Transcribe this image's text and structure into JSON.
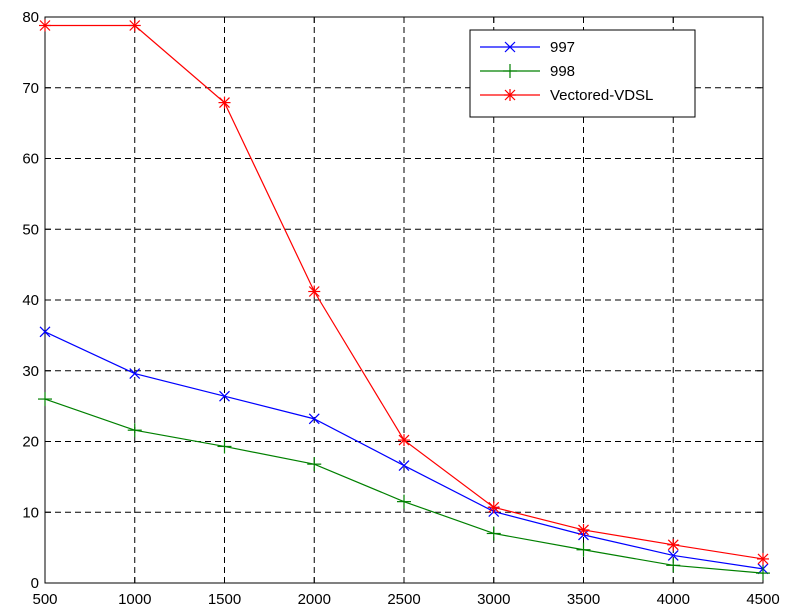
{
  "chart_data": {
    "type": "line",
    "title": "",
    "xlabel": "",
    "ylabel": "",
    "xlim": [
      500,
      4500
    ],
    "ylim": [
      0,
      80
    ],
    "x_ticks": [
      500,
      1000,
      1500,
      2000,
      2500,
      3000,
      3500,
      4000,
      4500
    ],
    "y_ticks": [
      0,
      10,
      20,
      30,
      40,
      50,
      60,
      70,
      80
    ],
    "grid": true,
    "legend_position": "top-right",
    "x": [
      500,
      1000,
      1500,
      2000,
      2500,
      3000,
      3500,
      4000,
      4500
    ],
    "series": [
      {
        "name": "997",
        "color": "#0000ff",
        "marker": "x",
        "values": [
          35.5,
          29.6,
          26.4,
          23.2,
          16.6,
          10.1,
          6.8,
          3.9,
          2.0
        ]
      },
      {
        "name": "998",
        "color": "#008000",
        "marker": "+",
        "values": [
          26.0,
          21.6,
          19.3,
          16.8,
          11.5,
          7.0,
          4.7,
          2.5,
          1.4
        ]
      },
      {
        "name": "Vectored-VDSL",
        "color": "#ff0000",
        "marker": "*",
        "values": [
          78.8,
          78.8,
          67.9,
          41.2,
          20.2,
          10.7,
          7.5,
          5.4,
          3.4
        ]
      }
    ]
  }
}
